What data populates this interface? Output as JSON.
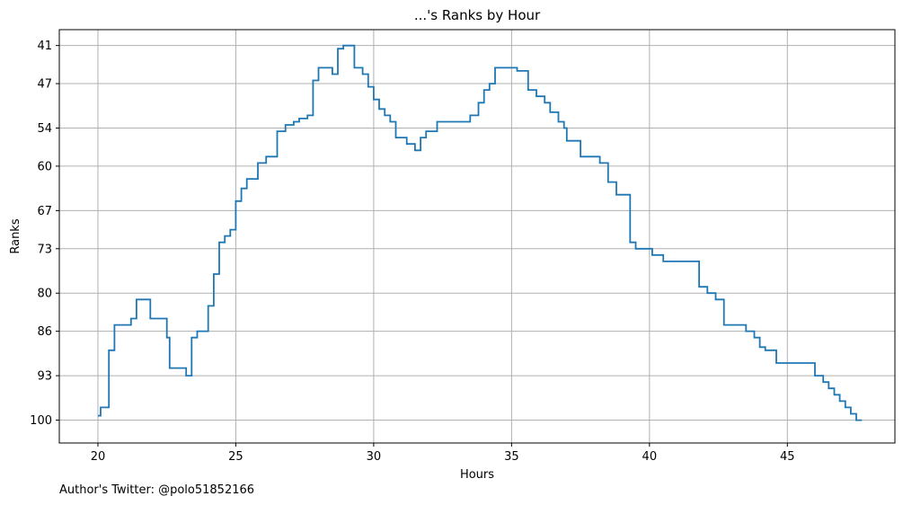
{
  "chart_data": {
    "type": "line",
    "step": true,
    "title": "...'s Ranks by Hour",
    "xlabel": "Hours",
    "ylabel": "Ranks",
    "xlim": [
      18.6,
      48.9
    ],
    "ylim": [
      103.6,
      38.5
    ],
    "y_inverted": true,
    "grid": true,
    "x_ticks": [
      20,
      25,
      30,
      35,
      40,
      45
    ],
    "y_ticks": [
      41,
      47,
      54,
      60,
      67,
      73,
      80,
      86,
      93,
      100
    ],
    "line_color": "#1f77b4",
    "series": [
      {
        "x": [
          20.0,
          20.1,
          20.2,
          20.4,
          20.6,
          21.0,
          21.2,
          21.4,
          21.7,
          21.9,
          22.2,
          22.5,
          22.6,
          23.0,
          23.2,
          23.4,
          23.6,
          23.8,
          24.0,
          24.2,
          24.4,
          24.6,
          24.8,
          25.0,
          25.2,
          25.4,
          25.6,
          25.8,
          26.1,
          26.3,
          26.5,
          26.8,
          26.9,
          27.1,
          27.3,
          27.6,
          27.8,
          28.0,
          28.2,
          28.5,
          28.7,
          28.9,
          29.0,
          29.3,
          29.6,
          29.8,
          30.0,
          30.2,
          30.4,
          30.6,
          30.8,
          31.0,
          31.2,
          31.5,
          31.7,
          31.9,
          32.0,
          32.1,
          32.3,
          32.6,
          32.9,
          33.2,
          33.5,
          33.8,
          34.0,
          34.2,
          34.4,
          34.6,
          34.8,
          35.0,
          35.2,
          35.4,
          35.6,
          35.9,
          36.2,
          36.4,
          36.7,
          36.9,
          37.0,
          37.3,
          37.5,
          37.8,
          38.0,
          38.2,
          38.5,
          38.8,
          39.1,
          39.3,
          39.5,
          39.9,
          40.1,
          40.5,
          40.9,
          41.2,
          41.5,
          41.8,
          42.1,
          42.4,
          42.7,
          42.9,
          43.1,
          43.5,
          43.8,
          44.0,
          44.2,
          44.4,
          44.6,
          45.0,
          45.3,
          45.6,
          46.0,
          46.3,
          46.5,
          46.7,
          46.9,
          47.1,
          47.3,
          47.5,
          47.7
        ],
        "y": [
          99.3,
          98.0,
          98.0,
          89.0,
          85.0,
          85.0,
          84.0,
          81.0,
          81.0,
          84.0,
          84.0,
          87.0,
          91.8,
          91.8,
          93.0,
          87.0,
          86.0,
          86.0,
          82.0,
          77.0,
          72.0,
          71.0,
          70.0,
          65.5,
          63.5,
          62.0,
          62.0,
          59.5,
          58.5,
          58.5,
          54.5,
          53.5,
          53.5,
          53.0,
          52.5,
          52.0,
          46.5,
          44.5,
          44.5,
          45.5,
          41.5,
          41.0,
          41.0,
          44.5,
          45.5,
          47.5,
          49.5,
          51.0,
          52.0,
          53.0,
          55.5,
          55.5,
          56.5,
          57.5,
          55.5,
          54.5,
          54.5,
          54.5,
          53.0,
          53.0,
          53.0,
          53.0,
          52.0,
          50.0,
          48.0,
          47.0,
          44.5,
          44.5,
          44.5,
          44.5,
          45.0,
          45.0,
          48.0,
          49.0,
          50.0,
          51.5,
          53.0,
          54.0,
          56.0,
          56.0,
          58.5,
          58.5,
          58.5,
          59.5,
          62.5,
          64.5,
          64.5,
          72.0,
          73.0,
          73.0,
          74.0,
          75.0,
          75.0,
          75.0,
          75.0,
          79.0,
          80.0,
          81.0,
          85.0,
          85.0,
          85.0,
          86.0,
          87.0,
          88.5,
          89.0,
          89.0,
          91.0,
          91.0,
          91.0,
          91.0,
          93.0,
          94.0,
          95.0,
          96.0,
          97.0,
          98.0,
          99.0,
          100.0,
          100.0
        ]
      }
    ]
  },
  "footer": {
    "author": "Author's Twitter: @polo51852166"
  }
}
